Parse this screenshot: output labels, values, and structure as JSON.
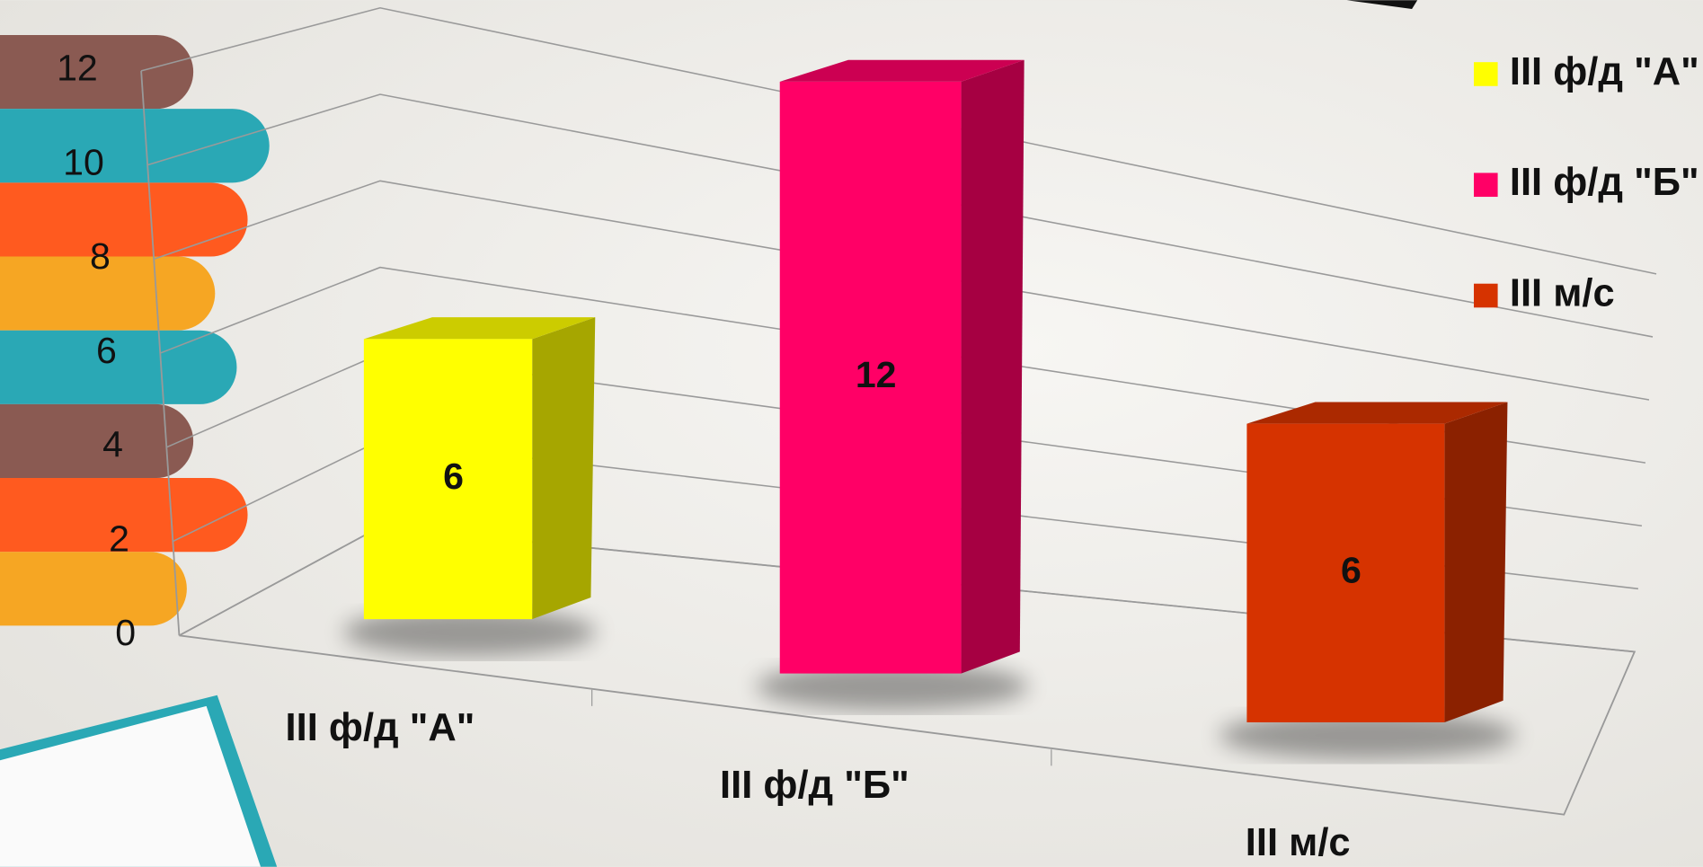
{
  "chart_data": {
    "type": "bar3d",
    "categories": [
      "III ф/д \"А\"",
      "III ф/д \"Б\"",
      "III м/с"
    ],
    "values": [
      6,
      12,
      6
    ],
    "colors": [
      "#ffff00",
      "#ff0066",
      "#d63300"
    ],
    "ylim": [
      0,
      12
    ],
    "yticks": [
      0,
      2,
      4,
      6,
      8,
      10,
      12
    ],
    "grid": true,
    "legend": "right"
  }
}
